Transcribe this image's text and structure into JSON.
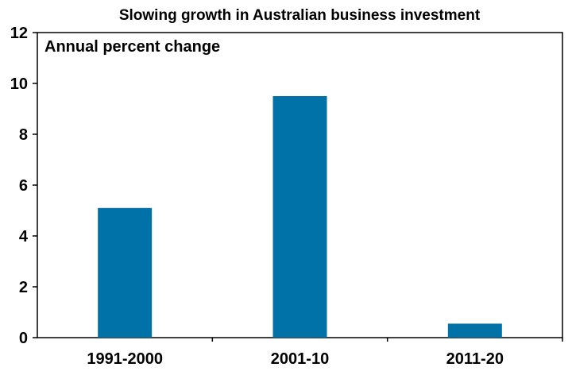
{
  "chart_data": {
    "type": "bar",
    "title": "Slowing growth in Australian business investment",
    "ylabel": "Annual percent change",
    "xlabel": "",
    "categories": [
      "1991-2000",
      "2001-10",
      "2011-20"
    ],
    "values": [
      5.1,
      9.5,
      0.55
    ],
    "ylim": [
      0,
      12
    ],
    "yticks": [
      0,
      2,
      4,
      6,
      8,
      10,
      12
    ],
    "grid": false,
    "legend": "none",
    "bar_color": "#0072A8"
  }
}
